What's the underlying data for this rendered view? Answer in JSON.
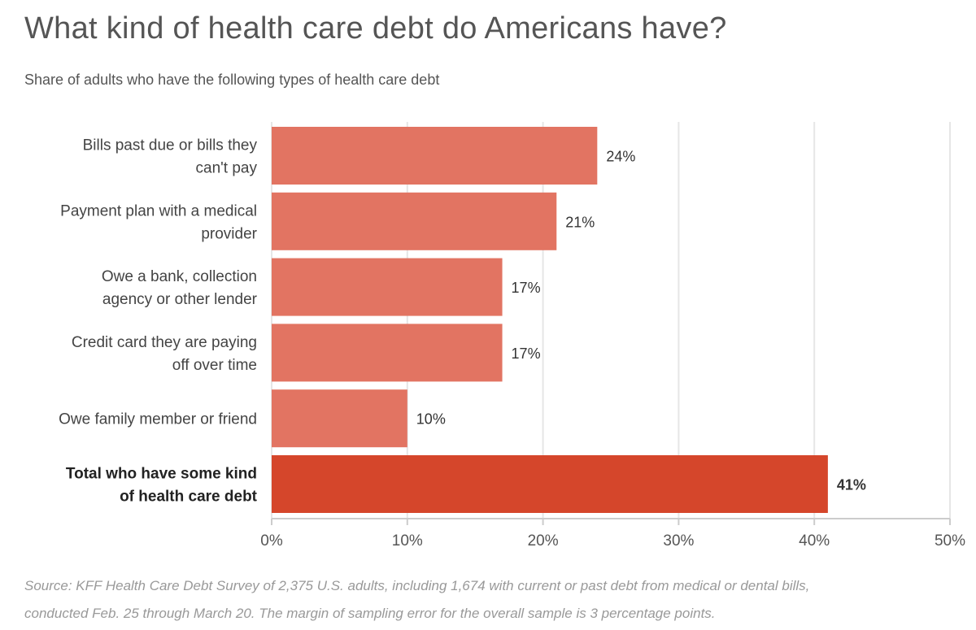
{
  "chart_data": {
    "type": "bar",
    "orientation": "horizontal",
    "title": "What kind of health care debt do Americans have?",
    "subtitle": "Share of adults who have the following types of health care debt",
    "categories": [
      [
        "Bills past due or bills they",
        "can't pay"
      ],
      [
        "Payment plan with a medical",
        "provider"
      ],
      [
        "Owe a bank, collection",
        "agency or other lender"
      ],
      [
        "Credit card they are paying",
        "off over time"
      ],
      [
        "Owe family member or friend"
      ],
      [
        "Total who have some kind",
        "of health care debt"
      ]
    ],
    "values": [
      24,
      21,
      17,
      17,
      10,
      41
    ],
    "value_labels": [
      "24%",
      "21%",
      "17%",
      "17%",
      "10%",
      "41%"
    ],
    "highlight": [
      false,
      false,
      false,
      false,
      false,
      true
    ],
    "xlim": [
      0,
      50
    ],
    "xticks": [
      0,
      10,
      20,
      30,
      40,
      50
    ],
    "xtick_labels": [
      "0%",
      "10%",
      "20%",
      "30%",
      "40%",
      "50%"
    ],
    "grid": true,
    "colors": {
      "bar": "#e27462",
      "highlight": "#d5462b",
      "grid": "#e6e6e6"
    }
  },
  "source": [
    "Source: KFF Health Care Debt Survey of 2,375 U.S. adults, including 1,674 with current or past debt from medical or dental bills,",
    "conducted Feb. 25 through March 20. The margin of sampling error for the overall sample is 3 percentage points."
  ]
}
